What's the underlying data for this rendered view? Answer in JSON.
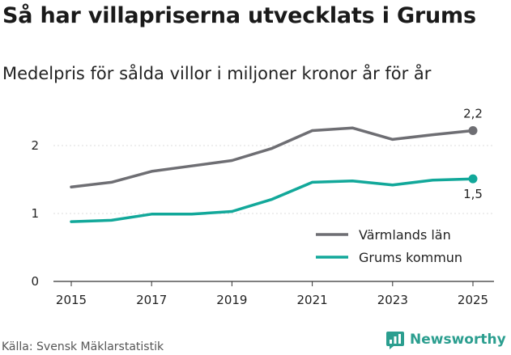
{
  "title": "Så har villapriserna utvecklats i Grums",
  "subtitle": "Medelpris för sålda villor i miljoner kronor år för år",
  "source": "Källa: Svensk Mäklarstatistik",
  "brand": "Newsworthy",
  "colors": {
    "varmland": "#6e6e73",
    "grums": "#12a89a",
    "brand": "#2b9e8f"
  },
  "chart_data": {
    "type": "line",
    "title": "Så har villapriserna utvecklats i Grums",
    "subtitle": "Medelpris för sålda villor i miljoner kronor år för år",
    "xlabel": "",
    "ylabel": "",
    "x": [
      2015,
      2016,
      2017,
      2018,
      2019,
      2020,
      2021,
      2022,
      2023,
      2024,
      2025
    ],
    "xticks": [
      "2015",
      "2017",
      "2019",
      "2021",
      "2023",
      "2025"
    ],
    "yticks": [
      "0",
      "1",
      "2"
    ],
    "ylim": [
      0,
      2.5
    ],
    "series": [
      {
        "name": "Värmlands län",
        "key": "varmland",
        "values": [
          1.39,
          1.46,
          1.62,
          1.7,
          1.78,
          1.96,
          2.22,
          2.26,
          2.09,
          2.16,
          2.22
        ],
        "end_label": "2,2"
      },
      {
        "name": "Grums kommun",
        "key": "grums",
        "values": [
          0.88,
          0.9,
          0.99,
          0.99,
          1.03,
          1.21,
          1.46,
          1.48,
          1.42,
          1.49,
          1.51
        ],
        "end_label": "1,5"
      }
    ],
    "legend": "bottom-right"
  }
}
